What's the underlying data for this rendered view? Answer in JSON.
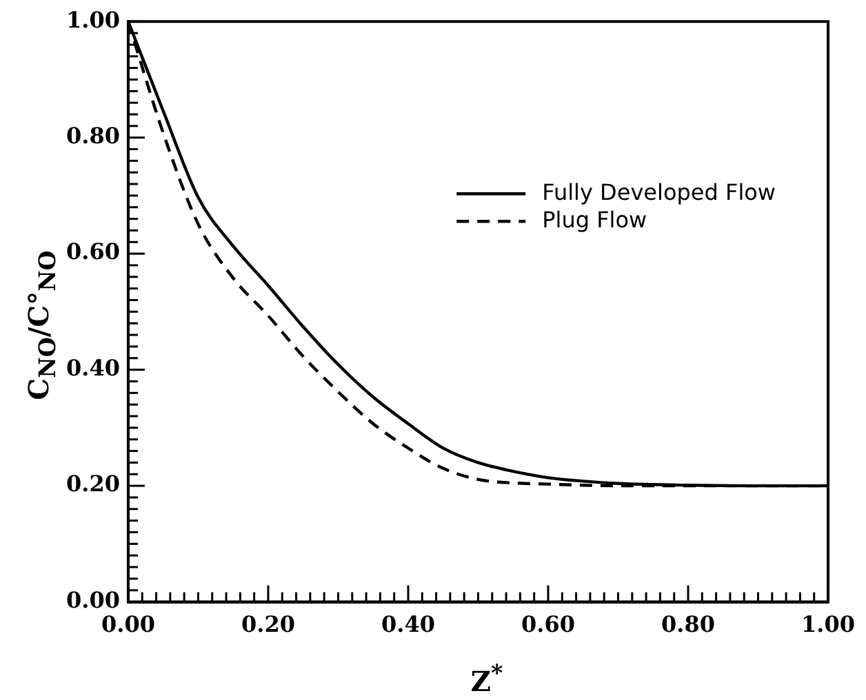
{
  "chart_data": {
    "type": "line",
    "xlabel": "Z$^{*}$",
    "ylabel": "C$_{NO}$/C°$_{NO}$",
    "x": [
      0,
      0.05,
      0.1,
      0.15,
      0.2,
      0.25,
      0.3,
      0.35,
      0.4,
      0.45,
      0.5,
      0.55,
      0.6,
      0.65,
      0.7,
      0.8,
      0.9,
      1.0
    ],
    "series": [
      {
        "name": "Fully Developed Flow",
        "color": "#000000",
        "line_style": "solid",
        "values": [
          1.0,
          0.846,
          0.697,
          0.613,
          0.545,
          0.474,
          0.409,
          0.353,
          0.307,
          0.265,
          0.24,
          0.225,
          0.214,
          0.208,
          0.204,
          0.201,
          0.2,
          0.2
        ]
      },
      {
        "name": "Plug Flow",
        "color": "#000000",
        "line_style": "dashed",
        "values": [
          1.0,
          0.808,
          0.651,
          0.558,
          0.493,
          0.423,
          0.362,
          0.307,
          0.265,
          0.23,
          0.211,
          0.205,
          0.203,
          0.201,
          0.2,
          0.2,
          0.2,
          0.2
        ]
      }
    ],
    "xlim": [
      0,
      1
    ],
    "ylim": [
      0,
      1
    ],
    "xticks": [
      {
        "value": 0,
        "label": "0.00"
      },
      {
        "value": 0.2,
        "label": "0.20"
      },
      {
        "value": 0.4,
        "label": "0.40"
      },
      {
        "value": 0.6,
        "label": "0.60"
      },
      {
        "value": 0.8,
        "label": "0.80"
      },
      {
        "value": 1,
        "label": "1.00"
      }
    ],
    "yticks": [
      {
        "value": 0,
        "label": "0.00"
      },
      {
        "value": 0.2,
        "label": "0.20"
      },
      {
        "value": 0.4,
        "label": "0.40"
      },
      {
        "value": 0.6,
        "label": "0.60"
      },
      {
        "value": 0.8,
        "label": "0.80"
      },
      {
        "value": 1,
        "label": "1.00"
      }
    ],
    "grid": false,
    "legend": "top right",
    "marker": "none"
  }
}
